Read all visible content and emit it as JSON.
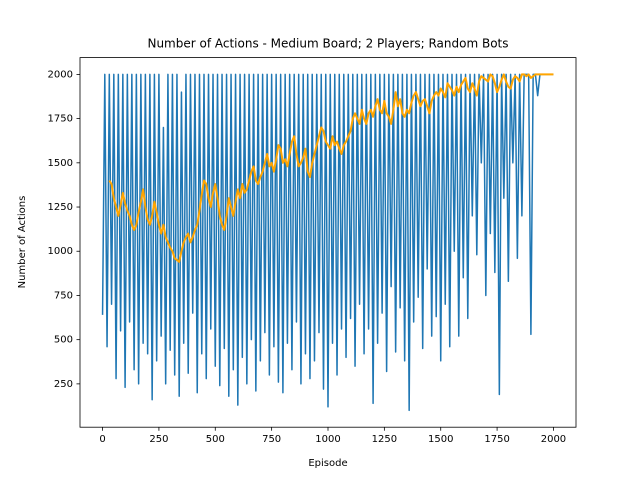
{
  "chart_data": {
    "type": "line",
    "title": "Number of Actions - Medium Board; 2 Players; Random Bots",
    "xlabel": "Episode",
    "ylabel": "Number of Actions",
    "xlim": [
      -100,
      2100
    ],
    "ylim": [
      5,
      2095
    ],
    "xticks": [
      0,
      250,
      500,
      750,
      1000,
      1250,
      1500,
      1750,
      2000
    ],
    "yticks": [
      250,
      500,
      750,
      1000,
      1250,
      1500,
      1750,
      2000
    ],
    "x": [
      0,
      10,
      20,
      30,
      40,
      50,
      60,
      70,
      80,
      90,
      100,
      110,
      120,
      130,
      140,
      150,
      160,
      170,
      180,
      190,
      200,
      210,
      220,
      230,
      240,
      250,
      260,
      270,
      280,
      290,
      300,
      310,
      320,
      330,
      340,
      350,
      360,
      370,
      380,
      390,
      400,
      410,
      420,
      430,
      440,
      450,
      460,
      470,
      480,
      490,
      500,
      510,
      520,
      530,
      540,
      550,
      560,
      570,
      580,
      590,
      600,
      610,
      620,
      630,
      640,
      650,
      660,
      670,
      680,
      690,
      700,
      710,
      720,
      730,
      740,
      750,
      760,
      770,
      780,
      790,
      800,
      810,
      820,
      830,
      840,
      850,
      860,
      870,
      880,
      890,
      900,
      910,
      920,
      930,
      940,
      950,
      960,
      970,
      980,
      990,
      1000,
      1010,
      1020,
      1030,
      1040,
      1050,
      1060,
      1070,
      1080,
      1090,
      1100,
      1110,
      1120,
      1130,
      1140,
      1150,
      1160,
      1170,
      1180,
      1190,
      1200,
      1210,
      1220,
      1230,
      1240,
      1250,
      1260,
      1270,
      1280,
      1290,
      1300,
      1310,
      1320,
      1330,
      1340,
      1350,
      1360,
      1370,
      1380,
      1390,
      1400,
      1410,
      1420,
      1430,
      1440,
      1450,
      1460,
      1470,
      1480,
      1490,
      1500,
      1510,
      1520,
      1530,
      1540,
      1550,
      1560,
      1570,
      1580,
      1590,
      1600,
      1610,
      1620,
      1630,
      1640,
      1650,
      1660,
      1670,
      1680,
      1690,
      1700,
      1710,
      1720,
      1730,
      1740,
      1750,
      1760,
      1770,
      1780,
      1790,
      1800,
      1810,
      1820,
      1830,
      1840,
      1850,
      1860,
      1870,
      1880,
      1890,
      1900,
      1910,
      1920,
      1930,
      1940,
      1950,
      1960,
      1970,
      1980,
      1990,
      2000
    ],
    "series": [
      {
        "color": "#1f77b4",
        "values": [
          640,
          2000,
          460,
          2000,
          700,
          2000,
          280,
          2000,
          550,
          2000,
          230,
          2000,
          600,
          2000,
          330,
          2000,
          250,
          2000,
          480,
          2000,
          420,
          2000,
          160,
          2000,
          380,
          2000,
          520,
          1700,
          250,
          2000,
          440,
          2000,
          300,
          2000,
          180,
          1900,
          480,
          2000,
          310,
          2000,
          650,
          2000,
          200,
          2000,
          420,
          2000,
          280,
          2000,
          560,
          2000,
          350,
          2000,
          240,
          2000,
          450,
          2000,
          180,
          2000,
          330,
          2000,
          130,
          2000,
          400,
          2000,
          250,
          2000,
          500,
          2000,
          210,
          2000,
          380,
          2000,
          540,
          2000,
          300,
          2000,
          460,
          2000,
          260,
          2000,
          200,
          2000,
          480,
          2000,
          330,
          2000,
          600,
          2000,
          250,
          2000,
          420,
          2000,
          280,
          2000,
          380,
          2000,
          540,
          2000,
          220,
          2000,
          120,
          2000,
          480,
          2000,
          300,
          2000,
          560,
          2000,
          400,
          2000,
          620,
          2000,
          350,
          2000,
          700,
          2000,
          420,
          2000,
          560,
          2000,
          140,
          2000,
          480,
          2000,
          650,
          2000,
          320,
          2000,
          800,
          2000,
          430,
          2000,
          680,
          2000,
          380,
          2000,
          100,
          2000,
          600,
          2000,
          740,
          2000,
          450,
          2000,
          900,
          2000,
          520,
          2000,
          630,
          2000,
          380,
          2000,
          700,
          2000,
          460,
          2000,
          1000,
          2000,
          520,
          2000,
          850,
          2000,
          620,
          2000,
          1200,
          2000,
          980,
          2000,
          1500,
          2000,
          750,
          2000,
          1100,
          2000,
          880,
          2000,
          190,
          2000,
          1300,
          2000,
          830,
          2000,
          1500,
          2000,
          960,
          2000,
          1200,
          2000,
          2000,
          2000,
          530,
          2000,
          2000,
          1880,
          2000,
          2000,
          2000,
          2000,
          2000,
          2000,
          2000
        ]
      },
      {
        "color": "#ffa500",
        "values": [
          null,
          null,
          null,
          1400,
          1380,
          1300,
          1250,
          1200,
          1260,
          1330,
          1270,
          1230,
          1200,
          1150,
          1120,
          1150,
          1220,
          1280,
          1350,
          1250,
          1180,
          1150,
          1200,
          1280,
          1220,
          1150,
          1100,
          1150,
          1080,
          1050,
          1020,
          1000,
          960,
          950,
          940,
          1000,
          1050,
          1080,
          1100,
          1050,
          1080,
          1120,
          1150,
          1230,
          1320,
          1400,
          1380,
          1300,
          1250,
          1330,
          1380,
          1300,
          1200,
          1150,
          1120,
          1200,
          1300,
          1250,
          1200,
          1280,
          1350,
          1300,
          1380,
          1330,
          1350,
          1400,
          1450,
          1480,
          1400,
          1380,
          1420,
          1450,
          1500,
          1550,
          1480,
          1500,
          1450,
          1520,
          1600,
          1580,
          1500,
          1520,
          1480,
          1550,
          1620,
          1650,
          1550,
          1480,
          1500,
          1530,
          1580,
          1450,
          1420,
          1500,
          1550,
          1600,
          1650,
          1700,
          1680,
          1620,
          1600,
          1580,
          1650,
          1600,
          1620,
          1580,
          1550,
          1600,
          1620,
          1650,
          1680,
          1750,
          1780,
          1750,
          1720,
          1800,
          1750,
          1720,
          1780,
          1800,
          1760,
          1820,
          1860,
          1800,
          1780,
          1850,
          1780,
          1760,
          1720,
          1800,
          1900,
          1820,
          1860,
          1780,
          1760,
          1800,
          1780,
          1840,
          1880,
          1900,
          1860,
          1820,
          1850,
          1860,
          1820,
          1780,
          1850,
          1880,
          1900,
          1880,
          1920,
          1900,
          1870,
          1950,
          1930,
          1910,
          1880,
          1930,
          1900,
          1940,
          1960,
          1980,
          1920,
          1900,
          1950,
          1920,
          1880,
          1960,
          1990,
          1980,
          1970,
          1960,
          2000,
          1990,
          1950,
          1900,
          1930,
          1970,
          2000,
          1960,
          1930,
          1920,
          1970,
          1990,
          1980,
          1960,
          2000,
          2000,
          1990,
          2000,
          1980,
          1990,
          2000,
          2000,
          2000,
          2000,
          2000,
          2000,
          2000,
          2000,
          2000
        ]
      }
    ]
  }
}
